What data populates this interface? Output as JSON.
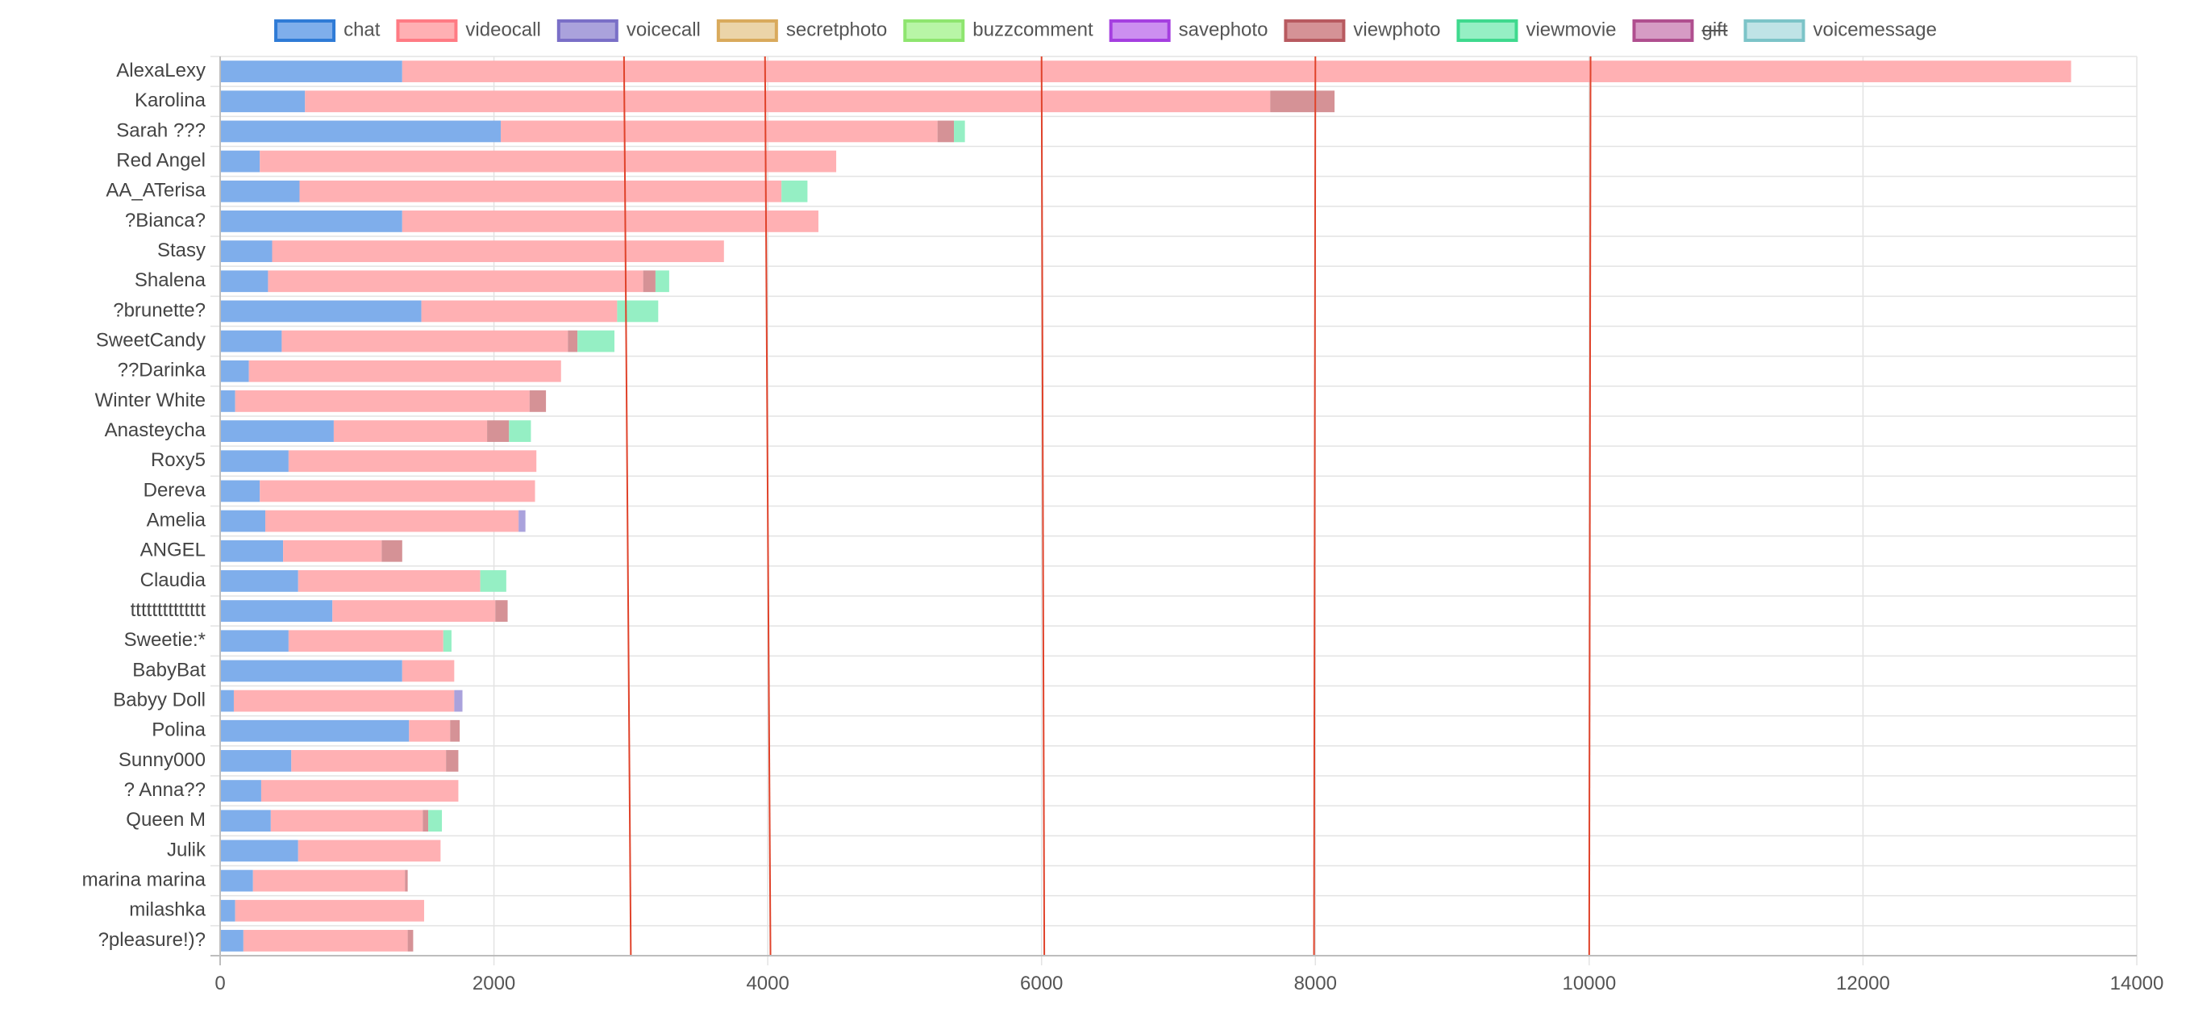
{
  "chart_data": {
    "type": "bar",
    "orientation": "horizontal",
    "stacked": true,
    "legend_position": "top",
    "grid": true,
    "xlim": [
      0,
      14000
    ],
    "x_ticks": [
      "0",
      "2000",
      "4000",
      "6000",
      "8000",
      "10000",
      "12000",
      "14000"
    ],
    "categories": [
      "AlexaLexy",
      "Karolina",
      "Sarah ???",
      "Red Angel",
      "AA_ATerisa",
      "?Bianca?",
      "Stasy",
      "Shalena",
      "?brunette?",
      "SweetCandy",
      "??Darinka",
      "Winter White",
      "Anasteycha",
      "Roxy5",
      "Dereva",
      "Amelia",
      "ANGEL",
      "Claudia",
      "tttttttttttttt",
      "Sweetie:*",
      "BabyBat",
      "Babyy Doll",
      "Polina",
      "Sunny000",
      "? Anna??",
      "Queen M",
      "Julik",
      "marina marina",
      "milashka",
      "?pleasure!)?"
    ],
    "series": [
      {
        "name": "chat",
        "color": "#7faeeb",
        "border": "#2f7bd6",
        "values": [
          1330,
          620,
          2050,
          290,
          580,
          1330,
          380,
          350,
          1470,
          450,
          210,
          110,
          830,
          500,
          290,
          330,
          460,
          570,
          820,
          500,
          1330,
          100,
          1380,
          520,
          300,
          370,
          570,
          240,
          110,
          170
        ],
        "hidden": false
      },
      {
        "name": "videocall",
        "color": "#ffb0b3",
        "border": "#ff7b84",
        "values": [
          12190,
          7050,
          3190,
          4210,
          3520,
          3040,
          3300,
          2740,
          1430,
          2090,
          2280,
          2150,
          1120,
          1810,
          2010,
          1850,
          720,
          1330,
          1190,
          1130,
          380,
          1610,
          300,
          1130,
          1440,
          1110,
          1040,
          1110,
          1380,
          1200
        ],
        "hidden": false
      },
      {
        "name": "voicecall",
        "color": "#aaa2dc",
        "border": "#7a6fc7",
        "values": [
          0,
          0,
          0,
          0,
          0,
          0,
          0,
          0,
          0,
          0,
          0,
          0,
          0,
          0,
          0,
          50,
          0,
          0,
          0,
          0,
          0,
          60,
          0,
          0,
          0,
          0,
          0,
          0,
          0,
          0
        ],
        "hidden": false
      },
      {
        "name": "secretphoto",
        "color": "#ebd4a8",
        "border": "#d9aa5c",
        "values": [
          0,
          0,
          0,
          0,
          0,
          0,
          0,
          0,
          0,
          0,
          0,
          0,
          0,
          0,
          0,
          0,
          0,
          0,
          0,
          0,
          0,
          0,
          0,
          0,
          0,
          0,
          0,
          0,
          0,
          0
        ],
        "hidden": false
      },
      {
        "name": "buzzcomment",
        "color": "#b8f5a6",
        "border": "#8ee56f",
        "values": [
          0,
          0,
          0,
          0,
          0,
          0,
          0,
          0,
          0,
          0,
          0,
          0,
          0,
          0,
          0,
          0,
          0,
          0,
          0,
          0,
          0,
          0,
          0,
          0,
          0,
          0,
          0,
          0,
          0,
          0
        ],
        "hidden": false
      },
      {
        "name": "savephoto",
        "color": "#cc8ff0",
        "border": "#a53fe0",
        "values": [
          0,
          0,
          0,
          0,
          0,
          0,
          0,
          0,
          0,
          0,
          0,
          0,
          0,
          0,
          0,
          0,
          0,
          0,
          0,
          0,
          0,
          0,
          0,
          0,
          0,
          0,
          0,
          0,
          0,
          0
        ],
        "hidden": false
      },
      {
        "name": "viewphoto",
        "color": "#d59296",
        "border": "#b85a60",
        "values": [
          0,
          470,
          120,
          0,
          0,
          0,
          0,
          90,
          0,
          70,
          0,
          120,
          160,
          0,
          0,
          0,
          150,
          0,
          90,
          0,
          0,
          0,
          70,
          90,
          0,
          40,
          0,
          20,
          0,
          40
        ],
        "hidden": false
      },
      {
        "name": "viewmovie",
        "color": "#95efc4",
        "border": "#3fd98e",
        "values": [
          0,
          0,
          80,
          0,
          190,
          0,
          0,
          100,
          300,
          270,
          0,
          0,
          160,
          0,
          0,
          0,
          0,
          190,
          0,
          60,
          0,
          0,
          0,
          0,
          0,
          100,
          0,
          0,
          0,
          0
        ],
        "hidden": false
      },
      {
        "name": "gift",
        "color": "#d69bc4",
        "border": "#b04f8f",
        "values": [
          30,
          0,
          0,
          0,
          0,
          10,
          0,
          0,
          0,
          0,
          0,
          0,
          0,
          0,
          0,
          0,
          0,
          0,
          0,
          0,
          0,
          0,
          0,
          0,
          0,
          0,
          0,
          0,
          0,
          0
        ],
        "hidden": true
      },
      {
        "name": "voicemessage",
        "color": "#bfe3e6",
        "border": "#7cc4c8",
        "values": [
          0,
          0,
          0,
          0,
          0,
          0,
          0,
          0,
          0,
          0,
          0,
          0,
          0,
          0,
          0,
          0,
          0,
          0,
          0,
          0,
          0,
          0,
          0,
          0,
          0,
          0,
          0,
          0,
          0,
          0
        ],
        "hidden": false
      }
    ],
    "annotation_line_color": "#e0432b",
    "annotation_lines": [
      {
        "x_top": 2950,
        "x_bottom": 3000
      },
      {
        "x_top": 3980,
        "x_bottom": 4020
      },
      {
        "x_top": 6000,
        "x_bottom": 6020
      },
      {
        "x_top": 8000,
        "x_bottom": 7990
      },
      {
        "x_top": 10010,
        "x_bottom": 10000
      }
    ]
  }
}
